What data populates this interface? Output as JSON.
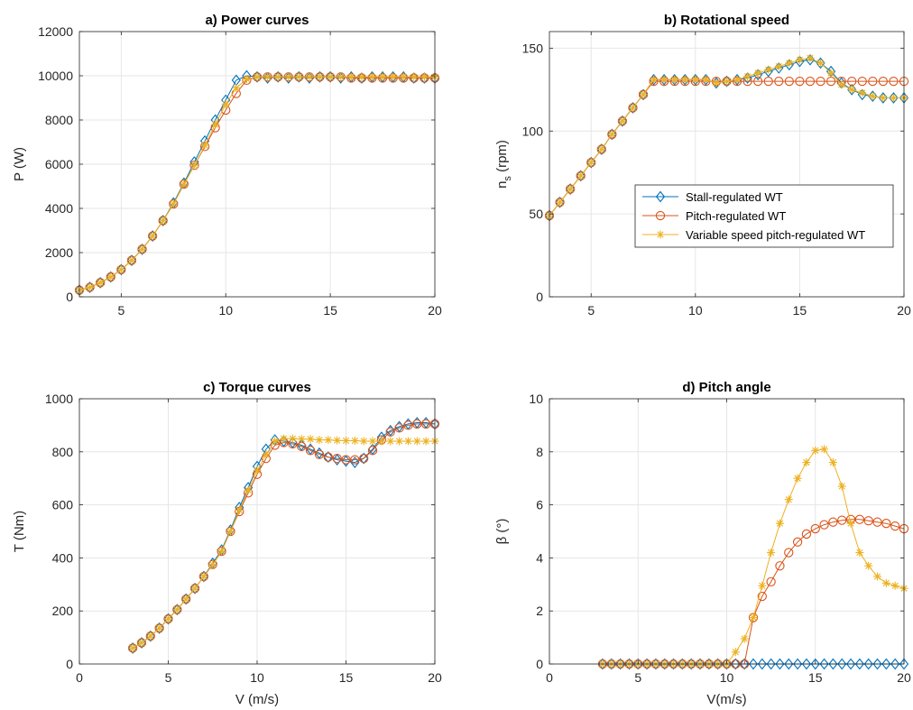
{
  "figure": {
    "legend_position": "inside-center-right of panel b",
    "legend_entries": [
      "Stall-regulated WT",
      "Pitch-regulated WT",
      "Variable speed pitch-regulated WT"
    ],
    "colors": {
      "stall": "#0072BD",
      "pitch": "#D95319",
      "vspeed": "#EDB120",
      "grid": "#e6e6e6",
      "axes": "#262626"
    }
  },
  "chart_data": [
    {
      "type": "line",
      "title": "a) Power curves",
      "xlabel": "",
      "ylabel": "P (W)",
      "xlim": [
        3,
        20
      ],
      "ylim": [
        0,
        12000
      ],
      "xticks": [
        5,
        10,
        15,
        20
      ],
      "yticks": [
        0,
        2000,
        4000,
        6000,
        8000,
        10000,
        12000
      ],
      "grid": true,
      "x": [
        3,
        3.5,
        4,
        4.5,
        5,
        5.5,
        6,
        6.5,
        7,
        7.5,
        8,
        8.5,
        9,
        9.5,
        10,
        10.5,
        11,
        11.5,
        12,
        12.5,
        13,
        13.5,
        14,
        14.5,
        15,
        15.5,
        16,
        16.5,
        17,
        17.5,
        18,
        18.5,
        19,
        19.5,
        20
      ],
      "series": [
        {
          "name": "Stall-regulated WT",
          "marker": "diamond",
          "color": "#0072BD",
          "values": [
            300,
            430,
            640,
            900,
            1230,
            1650,
            2150,
            2750,
            3450,
            4250,
            5150,
            6100,
            7050,
            8000,
            8900,
            9800,
            10000,
            9950,
            9900,
            9950,
            9900,
            9950,
            9900,
            9950,
            9950,
            9900,
            9950,
            9900,
            9950,
            9950,
            9950,
            9950,
            9900,
            9900,
            9900
          ]
        },
        {
          "name": "Pitch-regulated WT",
          "marker": "circle",
          "color": "#D95319",
          "values": [
            300,
            430,
            640,
            900,
            1230,
            1650,
            2150,
            2750,
            3450,
            4200,
            5100,
            5950,
            6800,
            7650,
            8450,
            9200,
            9800,
            9950,
            9950,
            9950,
            9950,
            9950,
            9950,
            9950,
            9950,
            9950,
            9900,
            9900,
            9900,
            9900,
            9900,
            9900,
            9900,
            9900,
            9900
          ]
        },
        {
          "name": "Variable speed pitch-regulated WT",
          "marker": "star",
          "color": "#EDB120",
          "values": [
            300,
            430,
            640,
            900,
            1230,
            1650,
            2150,
            2750,
            3450,
            4200,
            5100,
            5950,
            6850,
            7800,
            8700,
            9450,
            9850,
            9950,
            9950,
            9950,
            9950,
            9950,
            9950,
            9950,
            9950,
            9950,
            9950,
            9950,
            9950,
            9950,
            9950,
            9950,
            9950,
            9950,
            9950
          ]
        }
      ]
    },
    {
      "type": "line",
      "title": "b) Rotational speed",
      "xlabel": "",
      "ylabel": "n",
      "ylabel_sub": "s",
      "ylabel_suffix": " (rpm)",
      "xlim": [
        3,
        20
      ],
      "ylim": [
        0,
        160
      ],
      "xticks": [
        5,
        10,
        15,
        20
      ],
      "yticks": [
        0,
        50,
        100,
        150
      ],
      "grid": true,
      "x": [
        3,
        3.5,
        4,
        4.5,
        5,
        5.5,
        6,
        6.5,
        7,
        7.5,
        8,
        8.5,
        9,
        9.5,
        10,
        10.5,
        11,
        11.5,
        12,
        12.5,
        13,
        13.5,
        14,
        14.5,
        15,
        15.5,
        16,
        16.5,
        17,
        17.5,
        18,
        18.5,
        19,
        19.5,
        20
      ],
      "series": [
        {
          "name": "Stall-regulated WT",
          "marker": "diamond",
          "color": "#0072BD",
          "values": [
            49,
            57,
            65,
            73,
            81,
            89,
            98,
            106,
            114,
            122,
            131,
            131,
            131,
            131,
            131,
            131,
            129,
            130,
            131,
            132,
            134,
            136,
            138,
            140,
            142,
            143,
            141,
            136,
            129,
            125,
            122,
            121,
            120,
            120,
            120
          ]
        },
        {
          "name": "Pitch-regulated WT",
          "marker": "circle",
          "color": "#D95319",
          "values": [
            49,
            57,
            65,
            73,
            81,
            89,
            98,
            106,
            114,
            122,
            130,
            130,
            130,
            130,
            130,
            130,
            130,
            130,
            130,
            130,
            130,
            130,
            130,
            130,
            130,
            130,
            130,
            130,
            130,
            130,
            130,
            130,
            130,
            130,
            130
          ]
        },
        {
          "name": "Variable speed pitch-regulated WT",
          "marker": "star",
          "color": "#EDB120",
          "values": [
            49,
            57,
            65,
            73,
            81,
            89,
            98,
            106,
            114,
            122,
            131,
            131,
            131,
            131,
            131,
            131,
            129,
            130,
            131,
            133,
            135,
            137,
            139,
            141,
            143,
            144,
            141,
            135,
            128,
            125,
            123,
            121,
            120,
            120,
            120
          ]
        }
      ]
    },
    {
      "type": "line",
      "title": "c) Torque curves",
      "xlabel": "V (m/s)",
      "ylabel": "T (Nm)",
      "xlim": [
        0,
        20
      ],
      "ylim": [
        0,
        1000
      ],
      "xticks": [
        0,
        5,
        10,
        15,
        20
      ],
      "yticks": [
        0,
        200,
        400,
        600,
        800,
        1000
      ],
      "grid": true,
      "x": [
        3,
        3.5,
        4,
        4.5,
        5,
        5.5,
        6,
        6.5,
        7,
        7.5,
        8,
        8.5,
        9,
        9.5,
        10,
        10.5,
        11,
        11.5,
        12,
        12.5,
        13,
        13.5,
        14,
        14.5,
        15,
        15.5,
        16,
        16.5,
        17,
        17.5,
        18,
        18.5,
        19,
        19.5,
        20
      ],
      "series": [
        {
          "name": "Stall-regulated WT",
          "marker": "diamond",
          "color": "#0072BD",
          "values": [
            60,
            80,
            105,
            135,
            170,
            205,
            245,
            285,
            330,
            380,
            430,
            505,
            590,
            665,
            745,
            810,
            845,
            840,
            835,
            825,
            810,
            795,
            780,
            770,
            765,
            760,
            775,
            810,
            855,
            880,
            895,
            905,
            910,
            910,
            905
          ]
        },
        {
          "name": "Pitch-regulated WT",
          "marker": "circle",
          "color": "#D95319",
          "values": [
            60,
            80,
            105,
            135,
            170,
            205,
            245,
            285,
            330,
            375,
            425,
            500,
            575,
            645,
            715,
            775,
            825,
            835,
            830,
            820,
            805,
            790,
            780,
            775,
            770,
            770,
            775,
            805,
            845,
            875,
            890,
            900,
            905,
            905,
            905
          ]
        },
        {
          "name": "Variable speed pitch-regulated WT",
          "marker": "star",
          "color": "#EDB120",
          "values": [
            60,
            80,
            105,
            135,
            170,
            205,
            245,
            285,
            330,
            375,
            425,
            500,
            580,
            655,
            730,
            790,
            840,
            850,
            850,
            848,
            848,
            845,
            845,
            843,
            842,
            842,
            840,
            840,
            840,
            840,
            840,
            840,
            840,
            840,
            840
          ]
        }
      ]
    },
    {
      "type": "line",
      "title": "d) Pitch angle",
      "xlabel": "V(m/s)",
      "ylabel": "β (°)",
      "xlim": [
        0,
        20
      ],
      "ylim": [
        0,
        10
      ],
      "xticks": [
        0,
        5,
        10,
        15,
        20
      ],
      "yticks": [
        0,
        2,
        4,
        6,
        8,
        10
      ],
      "grid": true,
      "x": [
        3,
        3.5,
        4,
        4.5,
        5,
        5.5,
        6,
        6.5,
        7,
        7.5,
        8,
        8.5,
        9,
        9.5,
        10,
        10.5,
        11,
        11.5,
        12,
        12.5,
        13,
        13.5,
        14,
        14.5,
        15,
        15.5,
        16,
        16.5,
        17,
        17.5,
        18,
        18.5,
        19,
        19.5,
        20
      ],
      "series": [
        {
          "name": "Stall-regulated WT",
          "marker": "diamond",
          "color": "#0072BD",
          "values": [
            0,
            0,
            0,
            0,
            0,
            0,
            0,
            0,
            0,
            0,
            0,
            0,
            0,
            0,
            0,
            0,
            0,
            0,
            0,
            0,
            0,
            0,
            0,
            0,
            0,
            0,
            0,
            0,
            0,
            0,
            0,
            0,
            0,
            0,
            0
          ]
        },
        {
          "name": "Pitch-regulated WT",
          "marker": "circle",
          "color": "#D95319",
          "values": [
            0,
            0,
            0,
            0,
            0,
            0,
            0,
            0,
            0,
            0,
            0,
            0,
            0,
            0,
            0,
            0,
            0,
            1.75,
            2.55,
            3.1,
            3.7,
            4.2,
            4.6,
            4.9,
            5.1,
            5.25,
            5.35,
            5.42,
            5.45,
            5.45,
            5.4,
            5.35,
            5.3,
            5.2,
            5.1
          ]
        },
        {
          "name": "Variable speed pitch-regulated WT",
          "marker": "star",
          "color": "#EDB120",
          "values": [
            0,
            0,
            0,
            0,
            0,
            0,
            0,
            0,
            0,
            0,
            0,
            0,
            0,
            0,
            0,
            0.45,
            0.95,
            1.75,
            2.95,
            4.2,
            5.3,
            6.2,
            7.0,
            7.6,
            8.05,
            8.1,
            7.6,
            6.7,
            5.3,
            4.2,
            3.7,
            3.3,
            3.05,
            2.95,
            2.85
          ]
        }
      ]
    }
  ]
}
